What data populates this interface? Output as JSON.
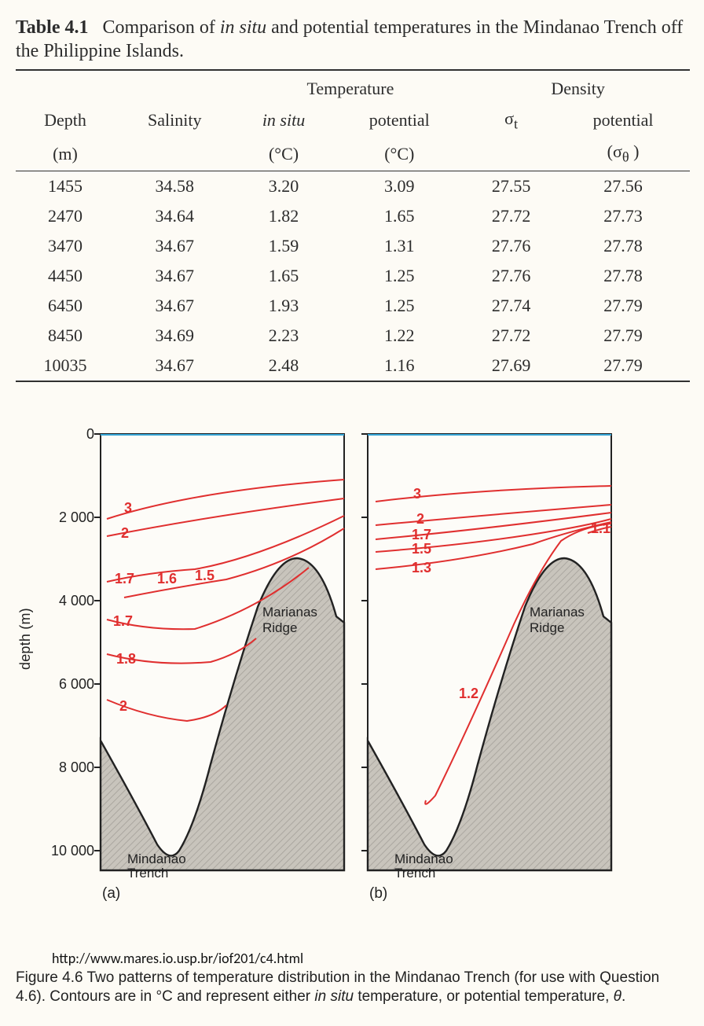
{
  "table": {
    "label": "Table 4.1",
    "caption_pre": "Comparison of ",
    "caption_ital": "in situ",
    "caption_post": " and potential temperatures in the Mindanao Trench off the Philippine Islands.",
    "group_headers": {
      "temperature": "Temperature",
      "density": "Density"
    },
    "columns": {
      "depth": "Depth",
      "depth_unit": "(m)",
      "salinity": "Salinity",
      "temp_insitu_label": "in situ",
      "temp_insitu_unit": "(°C)",
      "temp_pot_label": "potential",
      "temp_pot_unit": "(°C)",
      "sigma_t": "σₜ",
      "sigma_theta_label": "potential",
      "sigma_theta_unit": "(σ_θ )"
    },
    "rows": [
      {
        "depth": "1455",
        "sal": "34.58",
        "t_is": "3.20",
        "t_p": "3.09",
        "st": "27.55",
        "sth": "27.56"
      },
      {
        "depth": "2470",
        "sal": "34.64",
        "t_is": "1.82",
        "t_p": "1.65",
        "st": "27.72",
        "sth": "27.73"
      },
      {
        "depth": "3470",
        "sal": "34.67",
        "t_is": "1.59",
        "t_p": "1.31",
        "st": "27.76",
        "sth": "27.78"
      },
      {
        "depth": "4450",
        "sal": "34.67",
        "t_is": "1.65",
        "t_p": "1.25",
        "st": "27.76",
        "sth": "27.78"
      },
      {
        "depth": "6450",
        "sal": "34.67",
        "t_is": "1.93",
        "t_p": "1.25",
        "st": "27.74",
        "sth": "27.79"
      },
      {
        "depth": "8450",
        "sal": "34.69",
        "t_is": "2.23",
        "t_p": "1.22",
        "st": "27.72",
        "sth": "27.79"
      },
      {
        "depth": "10035",
        "sal": "34.67",
        "t_is": "2.48",
        "t_p": "1.16",
        "st": "27.69",
        "sth": "27.79"
      }
    ]
  },
  "figure": {
    "y_axis_label": "depth (m)",
    "y_range_m": [
      0,
      10500
    ],
    "y_ticks": [
      "0",
      "2 000",
      "4 000",
      "6 000",
      "8 000",
      "10 000"
    ],
    "panel_a_label": "(a)",
    "panel_b_label": "(b)",
    "feature_trench": "Mindanao\nTrench",
    "feature_ridge": "Marianas\nRidge",
    "contour_color": "#e02f2f",
    "terrain_fill": "#c8c4bc",
    "terrain_hatch": "#a8a49d",
    "terrain_stroke": "#222222",
    "surface_line_color": "#36a4d6",
    "panel_a_contours": [
      "3",
      "2",
      "1.7",
      "1.6",
      "1.5",
      "1.7",
      "1.8",
      "2"
    ],
    "panel_b_contours": [
      "3",
      "2",
      "1.7",
      "1.5",
      "1.3",
      "1.1",
      "1.2"
    ],
    "url": "http://www.mares.io.usp.br/iof201/c4.html",
    "caption_prefix": "Figure 4.6   Two patterns of temperature distribution in the Mindanao Trench (for use with Question 4.6). Contours are in °C and represent either ",
    "caption_ital": "in situ",
    "caption_mid": " temperature, or potential temperature, ",
    "caption_theta": "θ",
    "caption_end": "."
  }
}
